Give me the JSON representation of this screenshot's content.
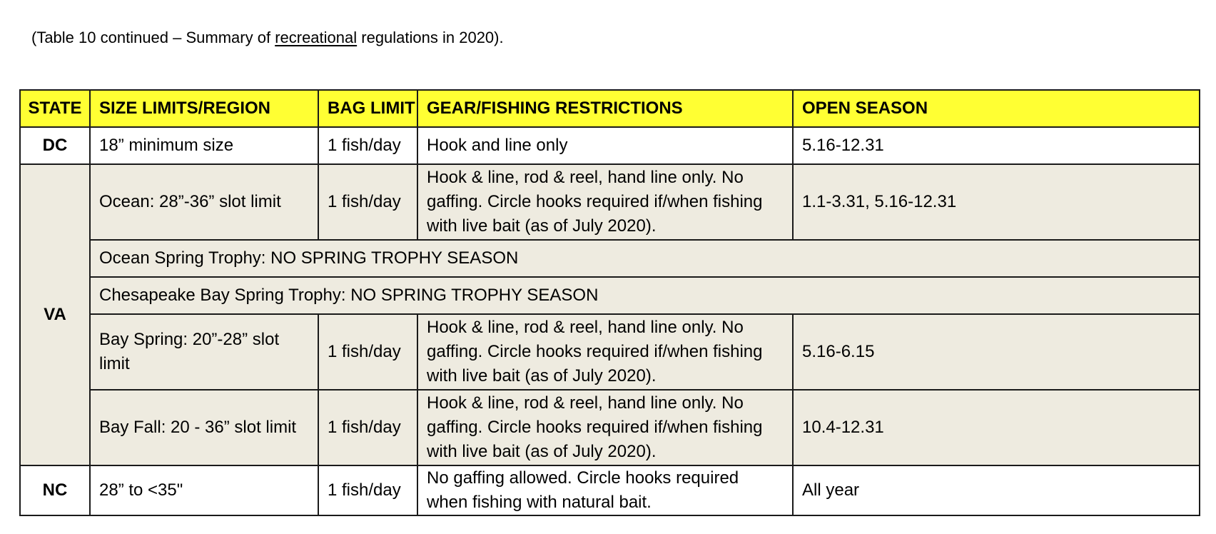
{
  "caption": {
    "prefix": "(Table 10 continued – Summary of ",
    "underlined": "recreational",
    "suffix": " regulations in 2020)."
  },
  "colors": {
    "header_background": "#ffff33",
    "va_background": "#eeebe0",
    "border": "#1a1a1a"
  },
  "table": {
    "headers": {
      "state": "STATE",
      "size": "SIZE LIMITS/REGION",
      "bag": "BAG LIMIT",
      "gear": "GEAR/FISHING RESTRICTIONS",
      "season": "OPEN SEASON"
    },
    "dc": {
      "state": "DC",
      "size": "18” minimum size",
      "bag": "1 fish/day",
      "gear": "Hook and line only",
      "season": "5.16-12.31"
    },
    "va": {
      "state": "VA",
      "ocean": {
        "size": "Ocean: 28”-36” slot limit",
        "bag": "1 fish/day",
        "gear": "Hook & line, rod & reel, hand line only. No gaffing. Circle hooks required if/when fishing with live bait (as of July 2020).",
        "season": "1.1-3.31, 5.16-12.31"
      },
      "ocean_trophy": "Ocean Spring Trophy: NO SPRING TROPHY SEASON",
      "bay_trophy": "Chesapeake Bay Spring Trophy: NO SPRING TROPHY SEASON",
      "bay_spring": {
        "size": "Bay Spring: 20”-28” slot limit",
        "bag": "1 fish/day",
        "gear": "Hook & line, rod & reel, hand line only. No gaffing. Circle hooks required if/when fishing with live bait (as of July 2020).",
        "season": "5.16-6.15"
      },
      "bay_fall": {
        "size": "Bay Fall: 20 - 36” slot limit",
        "bag": "1 fish/day",
        "gear": "Hook & line, rod & reel, hand line only. No gaffing. Circle hooks required if/when fishing with live bait (as of July 2020).",
        "season": "10.4-12.31"
      }
    },
    "nc": {
      "state": "NC",
      "size": "28” to <35\"",
      "bag": "1 fish/day",
      "gear": "No gaffing allowed. Circle hooks required when fishing with natural bait.",
      "season": "All year"
    }
  }
}
